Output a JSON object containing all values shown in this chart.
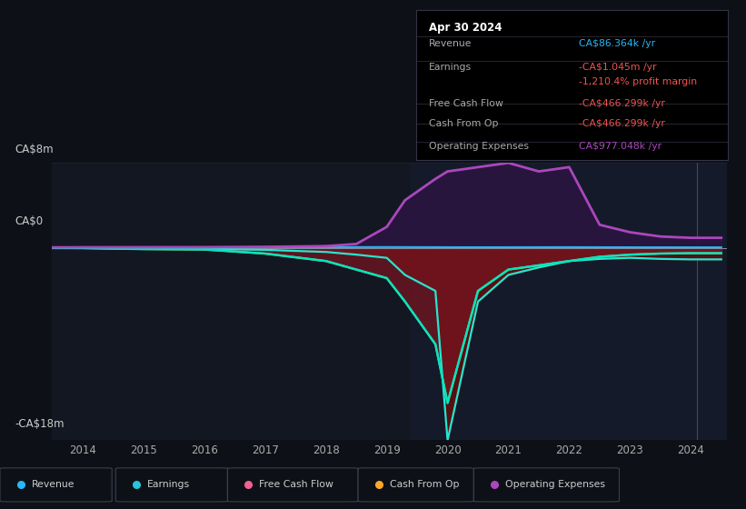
{
  "bg_color": "#0d1117",
  "panel_color": "#131722",
  "title": "Apr 30 2024",
  "tooltip": {
    "Revenue": "CA$86.364k /yr",
    "Earnings": "-CA$1.045m /yr",
    "profit_margin": "-1,210.4% profit margin",
    "Free Cash Flow": "-CA$466.299k /yr",
    "Cash From Op": "-CA$466.299k /yr",
    "Operating Expenses": "CA$977.048k /yr"
  },
  "tooltip_colors": {
    "Revenue": "#29b6f6",
    "Earnings": "#ef5350",
    "profit_margin": "#ef5350",
    "Free Cash Flow": "#ef5350",
    "Cash From Op": "#ef5350",
    "Operating Expenses": "#ab47bc"
  },
  "ylim": [
    -18000000,
    8000000
  ],
  "xlim": [
    2013.5,
    2024.6
  ],
  "ytick_labels": [
    "CA$8m",
    "CA$0",
    "-CA$18m"
  ],
  "ytick_values": [
    8000000,
    0,
    -18000000
  ],
  "xtick_labels": [
    "2014",
    "2015",
    "2016",
    "2017",
    "2018",
    "2019",
    "2020",
    "2021",
    "2022",
    "2023",
    "2024"
  ],
  "xtick_values": [
    2014,
    2015,
    2016,
    2017,
    2018,
    2019,
    2020,
    2021,
    2022,
    2023,
    2024
  ],
  "legend_items": [
    {
      "label": "Revenue",
      "color": "#29b6f6"
    },
    {
      "label": "Earnings",
      "color": "#26c6da"
    },
    {
      "label": "Free Cash Flow",
      "color": "#f06292"
    },
    {
      "label": "Cash From Op",
      "color": "#ffa726"
    },
    {
      "label": "Operating Expenses",
      "color": "#ab47bc"
    }
  ],
  "series": {
    "years": [
      2013.5,
      2014,
      2015,
      2016,
      2017,
      2018,
      2018.5,
      2019,
      2019.3,
      2019.8,
      2020,
      2020.5,
      2021,
      2021.5,
      2022,
      2022.5,
      2023,
      2023.5,
      2024,
      2024.5
    ],
    "Revenue": [
      80000,
      85000,
      88000,
      92000,
      95000,
      100000,
      105000,
      110000,
      105000,
      100000,
      95000,
      92000,
      95000,
      98000,
      100000,
      95000,
      90000,
      88000,
      86364,
      86364
    ],
    "Earnings": [
      30000,
      20000,
      -20000,
      -60000,
      -150000,
      -350000,
      -600000,
      -900000,
      -2500000,
      -4000000,
      -18000000,
      -5000000,
      -2500000,
      -1800000,
      -1200000,
      -1000000,
      -900000,
      -1000000,
      -1045000,
      -1045000
    ],
    "FreeCashFlow": [
      20000,
      10000,
      -80000,
      -120000,
      -500000,
      -1200000,
      -2000000,
      -2800000,
      -5000000,
      -9000000,
      -14500000,
      -4000000,
      -2000000,
      -1600000,
      -1200000,
      -800000,
      -600000,
      -500000,
      -466299,
      -466299
    ],
    "CashFromOp": [
      20000,
      10000,
      -80000,
      -120000,
      -500000,
      -1200000,
      -2000000,
      -2800000,
      -5000000,
      -9000000,
      -14500000,
      -4000000,
      -2000000,
      -1600000,
      -1200000,
      -800000,
      -600000,
      -500000,
      -466299,
      -466299
    ],
    "OperatingExpenses": [
      80000,
      90000,
      95000,
      100000,
      130000,
      200000,
      400000,
      2000000,
      4500000,
      6500000,
      7200000,
      7600000,
      8000000,
      7200000,
      7600000,
      2200000,
      1500000,
      1100000,
      977048,
      977048
    ]
  },
  "grid_color": "#1e2535",
  "separator_color": "#333344",
  "tooltip_bg": "#000000",
  "legend_border": "#444455"
}
